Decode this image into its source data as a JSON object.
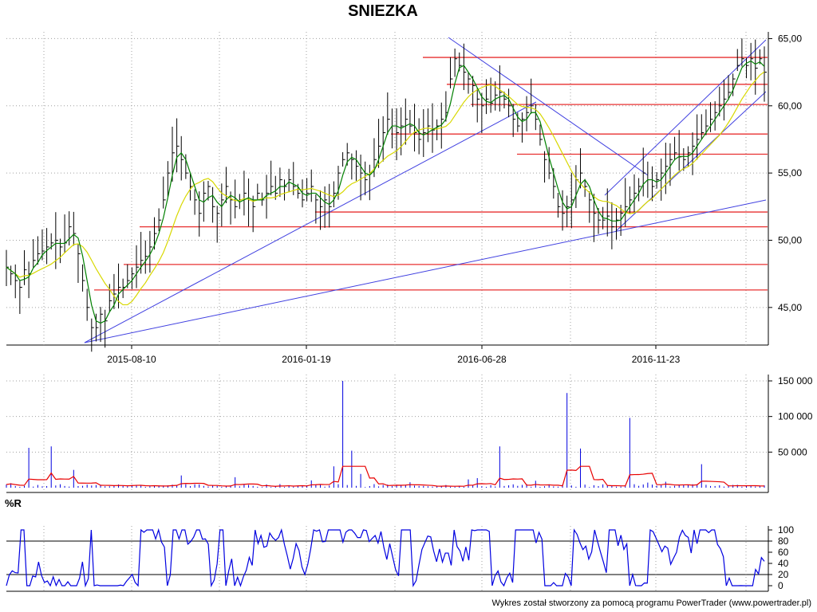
{
  "title": "SNIEZKA",
  "footer": "Wykres został stworzony za pomocą programu PowerTrader (www.powertrader.pl)",
  "colors": {
    "price_bars": "#000000",
    "short_ma": "#008000",
    "long_ma": "#d8d800",
    "trend_lines": "#4040e0",
    "support_resistance": "#e83030",
    "volume": "#0000e0",
    "volume_ma": "#e80000",
    "williams_r": "#0000e0"
  },
  "chart_data": [
    {
      "type": "line",
      "name": "price",
      "x_ticks": [
        "2015-08-10",
        "2016-01-19",
        "2016-06-28",
        "2016-11-23"
      ],
      "y_ticks": [
        "45,00",
        "50,00",
        "55,00",
        "60,00",
        "65,00"
      ],
      "ylim": [
        42.5,
        65.5
      ],
      "grid": true,
      "series": [
        {
          "values": [
            48,
            47.5,
            47,
            46.5,
            47.8,
            47.5,
            48.5,
            49,
            49.2,
            49.5,
            49.8,
            50,
            49.5,
            49.8,
            51,
            50.5,
            49,
            47,
            45,
            43.5,
            43.5,
            44.5,
            44,
            45.5,
            46,
            46.5,
            46.5,
            47,
            47.5,
            48,
            48.5,
            48.8,
            49.5,
            50.5,
            51.5,
            53,
            55,
            56.5,
            57,
            56,
            55,
            54,
            53,
            52,
            53.5,
            54,
            52.5,
            52,
            53,
            54,
            53,
            52.5,
            53,
            53.5,
            53,
            52.5,
            53.5,
            53,
            53.5,
            54,
            53.5,
            54.5,
            54,
            54.5,
            54,
            53.5,
            53,
            53.5,
            54,
            53,
            52.5,
            53,
            52.5,
            53.5,
            55,
            56,
            56.5,
            56,
            55.5,
            55,
            54.5,
            55,
            56,
            57,
            58,
            59,
            58.5,
            58,
            58.5,
            59,
            58.5,
            58,
            57.5,
            58,
            58.5,
            58.2,
            58.5,
            59,
            59.5,
            62,
            63.5,
            63,
            62.5,
            62,
            61.5,
            60.5,
            60,
            60.5,
            60.2,
            60.8,
            61,
            60.5,
            60,
            59,
            58.5,
            59,
            59.5,
            60,
            59,
            57.5,
            56,
            55,
            54,
            52.5,
            52,
            52.5,
            53,
            54.5,
            55,
            54,
            53,
            52,
            51.5,
            51.5,
            51.8,
            51,
            51.5,
            52,
            52.5,
            53,
            53.5,
            54,
            55,
            54.5,
            54,
            54.5,
            55,
            55.5,
            56,
            56.5,
            56.2,
            56,
            56.5,
            57,
            57.5,
            58,
            58.5,
            59,
            59.5,
            60,
            60.5,
            61,
            62,
            63,
            63.5,
            63,
            63.5,
            62.8,
            63.5,
            62.5
          ]
        }
      ],
      "support_resistance_levels": [
        63.6,
        61.6,
        60.1,
        57.9,
        56.4,
        52.1,
        51,
        48.2,
        46.3
      ],
      "trend_lines": [
        {
          "from": [
            "2015-08 start",
            42
          ],
          "to": [
            "2016-05",
            60.8
          ],
          "label": ""
        },
        {
          "from": [
            "2015-08 start",
            42
          ],
          "to": [
            "2017-02",
            52.6
          ],
          "label": ""
        },
        {
          "from": [
            "2016-05",
            65
          ],
          "to": [
            "2016-11",
            55
          ],
          "label": ""
        }
      ]
    },
    {
      "type": "bar",
      "name": "volume",
      "y_ticks": [
        "50 000",
        "100 000",
        "150 000"
      ],
      "ylim": [
        0,
        150000
      ],
      "spikes": [
        {
          "x": 0.03,
          "value": 56000
        },
        {
          "x": 0.06,
          "value": 58000
        },
        {
          "x": 0.09,
          "value": 25000
        },
        {
          "x": 0.43,
          "value": 30000
        },
        {
          "x": 0.445,
          "value": 150000
        },
        {
          "x": 0.455,
          "value": 52000
        },
        {
          "x": 0.65,
          "value": 58000
        },
        {
          "x": 0.74,
          "value": 133000
        },
        {
          "x": 0.755,
          "value": 55000
        },
        {
          "x": 0.82,
          "value": 98000
        },
        {
          "x": 0.92,
          "value": 33000
        }
      ],
      "baseline_value": 3000
    },
    {
      "type": "line",
      "name": "williams_r",
      "label": "%R",
      "y_ticks": [
        "0",
        "20",
        "40",
        "60",
        "80",
        "100"
      ],
      "ylim": [
        0,
        100
      ],
      "guide_levels": [
        20,
        80
      ]
    }
  ]
}
